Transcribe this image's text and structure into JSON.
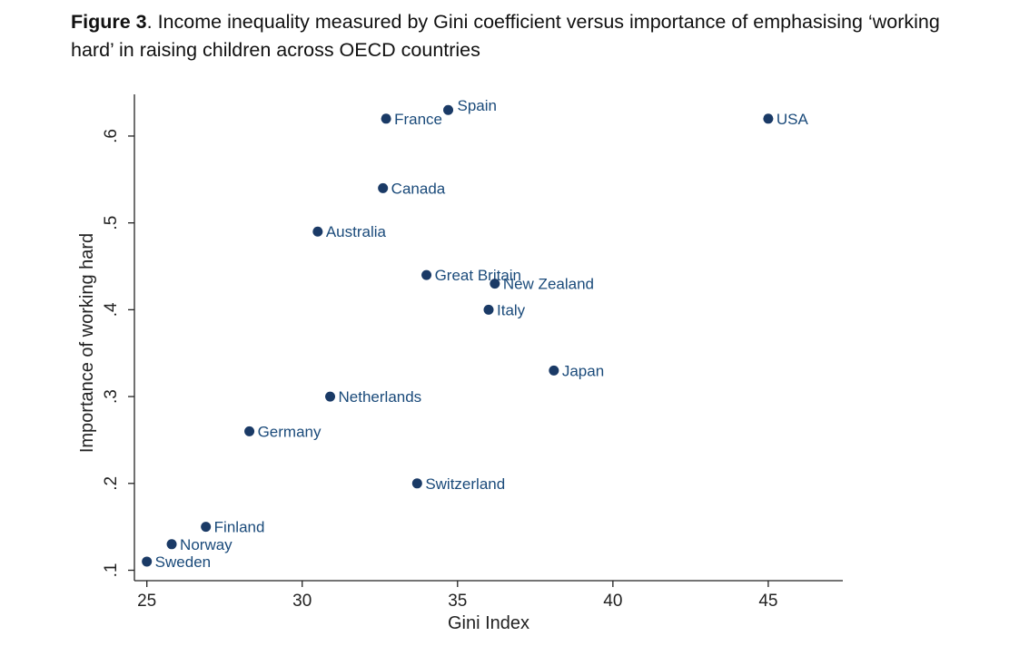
{
  "figure": {
    "label": "Figure 3",
    "caption": ". Income inequality measured by Gini coefficient versus importance of emphasising ‘working hard’ in raising children across OECD countries"
  },
  "chart_data": {
    "type": "scatter",
    "title": "",
    "xlabel": "Gini Index",
    "ylabel": "Importance of working hard",
    "xlim": [
      24.6,
      47.4
    ],
    "ylim": [
      0.088,
      0.648
    ],
    "xticks": [
      25,
      30,
      35,
      40,
      45
    ],
    "yticks": [
      0.1,
      0.2,
      0.3,
      0.4,
      0.5,
      0.6
    ],
    "ytick_labels": [
      ".1",
      ".2",
      ".3",
      ".4",
      ".5",
      ".6"
    ],
    "marker_color": "#1a3a66",
    "label_color": "#1a4a7a",
    "points": [
      {
        "label": "USA",
        "x": 45.0,
        "y": 0.62,
        "pos": "right"
      },
      {
        "label": "Spain",
        "x": 34.7,
        "y": 0.63,
        "pos": "right-up"
      },
      {
        "label": "France",
        "x": 32.7,
        "y": 0.62,
        "pos": "right"
      },
      {
        "label": "Canada",
        "x": 32.6,
        "y": 0.54,
        "pos": "right"
      },
      {
        "label": "Australia",
        "x": 30.5,
        "y": 0.49,
        "pos": "right"
      },
      {
        "label": "Great Britain",
        "x": 34.0,
        "y": 0.44,
        "pos": "right"
      },
      {
        "label": "New Zealand",
        "x": 36.2,
        "y": 0.43,
        "pos": "right"
      },
      {
        "label": "Italy",
        "x": 36.0,
        "y": 0.4,
        "pos": "right"
      },
      {
        "label": "Japan",
        "x": 38.1,
        "y": 0.33,
        "pos": "right"
      },
      {
        "label": "Netherlands",
        "x": 30.9,
        "y": 0.3,
        "pos": "right"
      },
      {
        "label": "Germany",
        "x": 28.3,
        "y": 0.26,
        "pos": "right"
      },
      {
        "label": "Switzerland",
        "x": 33.7,
        "y": 0.2,
        "pos": "right"
      },
      {
        "label": "Finland",
        "x": 26.9,
        "y": 0.15,
        "pos": "right"
      },
      {
        "label": "Norway",
        "x": 25.8,
        "y": 0.13,
        "pos": "right"
      },
      {
        "label": "Sweden",
        "x": 25.0,
        "y": 0.11,
        "pos": "right"
      }
    ]
  }
}
